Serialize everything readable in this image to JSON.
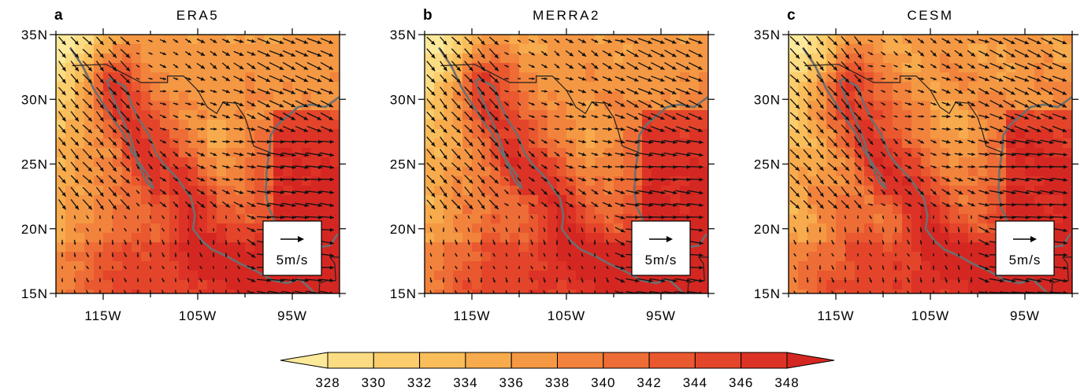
{
  "panels": [
    {
      "letter": "a",
      "title": "ERA5",
      "ref_label": "5m/s",
      "seed": 11
    },
    {
      "letter": "b",
      "title": "MERRA2",
      "ref_label": "5m/s",
      "seed": 23
    },
    {
      "letter": "c",
      "title": "CESM",
      "ref_label": "5m/s",
      "seed": 37
    }
  ],
  "lat_ticks": [
    "35N",
    "30N",
    "25N",
    "20N",
    "15N"
  ],
  "lon_ticks": [
    "115W",
    "105W",
    "95W"
  ],
  "colorbar": {
    "ticks": [
      "328",
      "330",
      "332",
      "334",
      "336",
      "338",
      "340",
      "342",
      "344",
      "346",
      "348"
    ],
    "colors": [
      "#fde99a",
      "#fcdc82",
      "#fbcd6c",
      "#f9bd5a",
      "#f8ab4c",
      "#f59843",
      "#f2833c",
      "#ee6d36",
      "#e9582f",
      "#e4452a",
      "#dd3326",
      "#d52722"
    ]
  },
  "colors": {
    "coast": "#6e6e6e",
    "border": "#222222",
    "arrow": "#111111"
  }
}
